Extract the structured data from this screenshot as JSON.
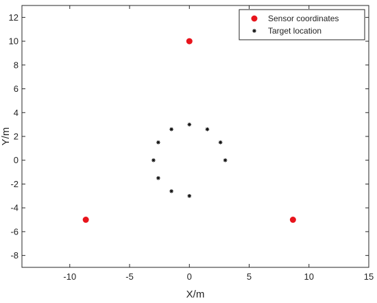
{
  "chart_data": {
    "type": "scatter",
    "title": "",
    "xlabel": "X/m",
    "ylabel": "Y/m",
    "xlim": [
      -14,
      15
    ],
    "ylim": [
      -9,
      13
    ],
    "xticks": [
      -10,
      -5,
      0,
      5,
      10,
      15
    ],
    "yticks": [
      -8,
      -6,
      -4,
      -2,
      0,
      2,
      4,
      6,
      8,
      10,
      12
    ],
    "grid": false,
    "legend": "top-right",
    "series": [
      {
        "name": "Sensor coordinates",
        "marker": "circle",
        "color": "#e8141c",
        "x": [
          0,
          -8.66,
          8.66
        ],
        "y": [
          10,
          -5,
          -5
        ]
      },
      {
        "name": "Target location",
        "marker": "star",
        "color": "#111111",
        "x": [
          0,
          1.5,
          2.6,
          3,
          -1.5,
          -2.6,
          -3,
          -2.6,
          -1.5,
          0
        ],
        "y": [
          3,
          2.6,
          1.5,
          0,
          2.6,
          1.5,
          0,
          -1.5,
          -2.6,
          -3
        ]
      }
    ]
  }
}
